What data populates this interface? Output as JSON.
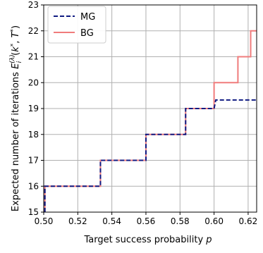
{
  "chart_data": {
    "type": "line",
    "xlabel_main": "Target success probability ",
    "xlabel_var": "p",
    "ylabel": "Expected number of iterations E_i^(λ)(k*, T*)",
    "xlim": [
      0.5,
      0.625
    ],
    "ylim": [
      15,
      23
    ],
    "xticks": [
      0.5,
      0.52,
      0.54,
      0.56,
      0.58,
      0.6,
      0.62
    ],
    "xtick_labels": [
      "0.50",
      "0.52",
      "0.54",
      "0.56",
      "0.58",
      "0.60",
      "0.62"
    ],
    "yticks": [
      15,
      16,
      17,
      18,
      19,
      20,
      21,
      22,
      23
    ],
    "ytick_labels": [
      "15",
      "16",
      "17",
      "18",
      "19",
      "20",
      "21",
      "22",
      "23"
    ],
    "grid": true,
    "legend_position": "top-left",
    "series": [
      {
        "name": "BG",
        "color": "#f07c7c",
        "style": "solid",
        "points": [
          [
            0.5007,
            15
          ],
          [
            0.5007,
            16
          ],
          [
            0.5333,
            16
          ],
          [
            0.5333,
            17
          ],
          [
            0.56,
            17
          ],
          [
            0.56,
            18
          ],
          [
            0.5833,
            18
          ],
          [
            0.5833,
            19
          ],
          [
            0.6,
            19
          ],
          [
            0.6,
            20
          ],
          [
            0.614,
            20
          ],
          [
            0.614,
            21
          ],
          [
            0.6215,
            21
          ],
          [
            0.6215,
            22
          ],
          [
            0.625,
            22
          ]
        ]
      },
      {
        "name": "MG",
        "color": "#101b82",
        "style": "dashed",
        "points": [
          [
            0.5007,
            15
          ],
          [
            0.5007,
            16
          ],
          [
            0.5333,
            16
          ],
          [
            0.5333,
            17
          ],
          [
            0.56,
            17
          ],
          [
            0.56,
            18
          ],
          [
            0.5833,
            18
          ],
          [
            0.5833,
            19
          ],
          [
            0.6,
            19
          ],
          [
            0.601,
            19.33
          ],
          [
            0.625,
            19.33
          ]
        ]
      }
    ]
  }
}
